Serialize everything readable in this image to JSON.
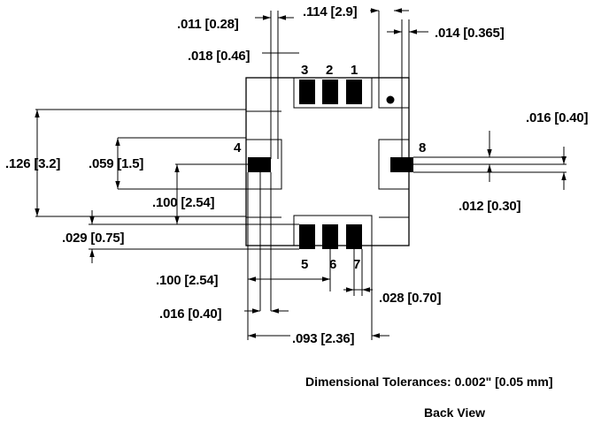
{
  "dimensions": {
    "d_011": ".011 [0.28]",
    "d_114": ".114 [2.9]",
    "d_014": ".014 [0.365]",
    "d_018": ".018 [0.46]",
    "d_016_right": ".016 [0.40]",
    "d_126": ".126 [3.2]",
    "d_059": ".059 [1.5]",
    "d_100_left": ".100 [2.54]",
    "d_012": ".012 [0.30]",
    "d_029": ".029 [0.75]",
    "d_100_bottom": ".100 [2.54]",
    "d_028": ".028 [0.70]",
    "d_016_bottom": ".016 [0.40]",
    "d_093": ".093 [2.36]"
  },
  "pins": {
    "p1": "1",
    "p2": "2",
    "p3": "3",
    "p4": "4",
    "p5": "5",
    "p6": "6",
    "p7": "7",
    "p8": "8"
  },
  "notes": {
    "tolerance": "Dimensional Tolerances: 0.002\" [0.05 mm]",
    "view": "Back View"
  }
}
